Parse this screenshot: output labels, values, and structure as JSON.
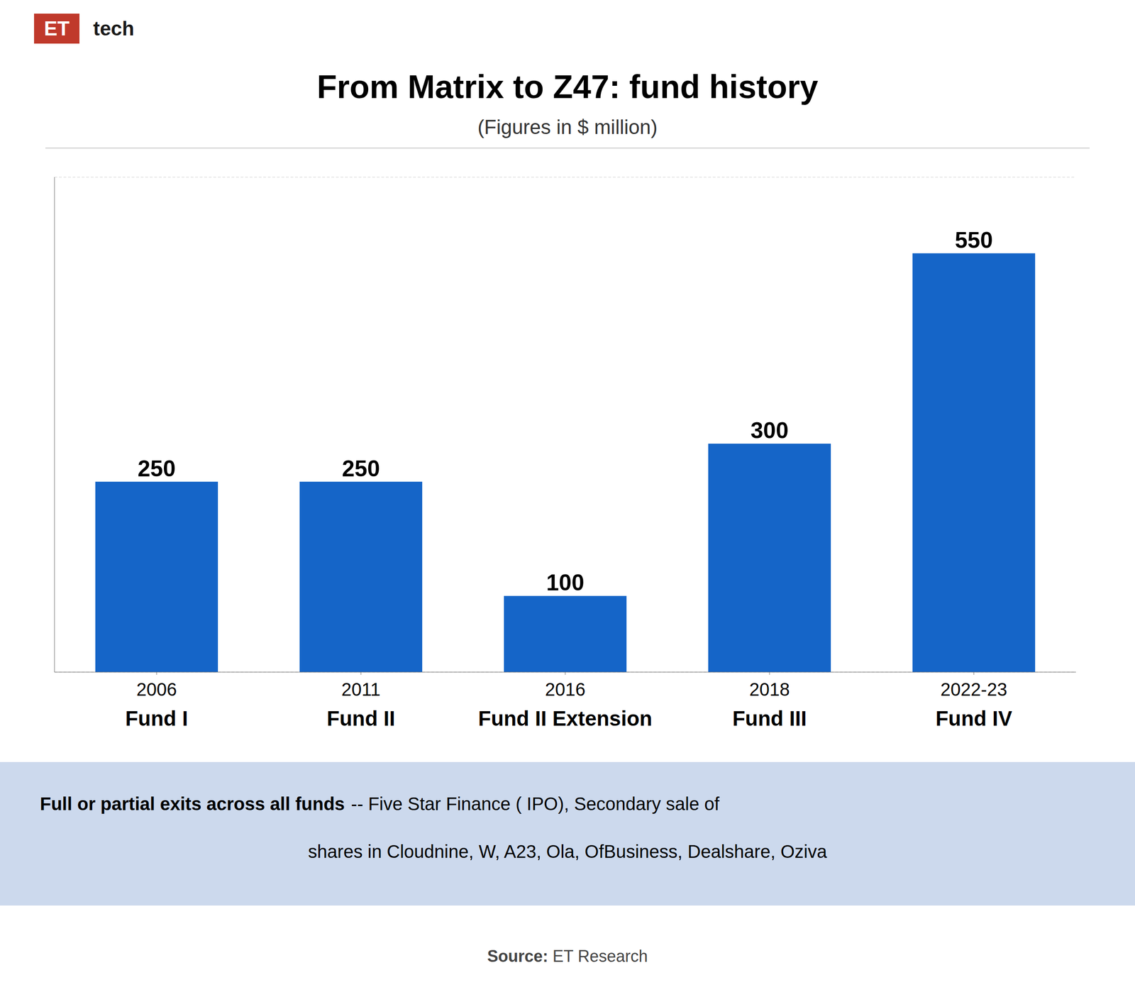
{
  "chart_data": {
    "type": "bar",
    "title": "From Matrix to Z47: fund history",
    "subtitle": "(Figures in $ million)",
    "categories": [
      "2006\nFund I",
      "2011\nFund II",
      "2016\nFund II Extension",
      "2018\nFund III",
      "2022-23\nFund IV"
    ],
    "values": [
      250,
      250,
      100,
      300,
      550
    ],
    "color": "#1565C8",
    "ylim": [
      0,
      650
    ],
    "yticks": [
      100,
      200,
      300,
      400,
      500
    ],
    "grid": true,
    "data_labels": true,
    "tick_labels": "x",
    "note": [
      "Full or partial exits across all funds",
      "-- Five Star Finance ( IPO), Secondary sale of",
      "shares in Cloudnine, W, A23, Ola, OfBusiness, Dealshare, Oziva"
    ],
    "source": [
      "Source:",
      "ET Research"
    ],
    "logo": [
      "ET",
      "tech"
    ]
  }
}
